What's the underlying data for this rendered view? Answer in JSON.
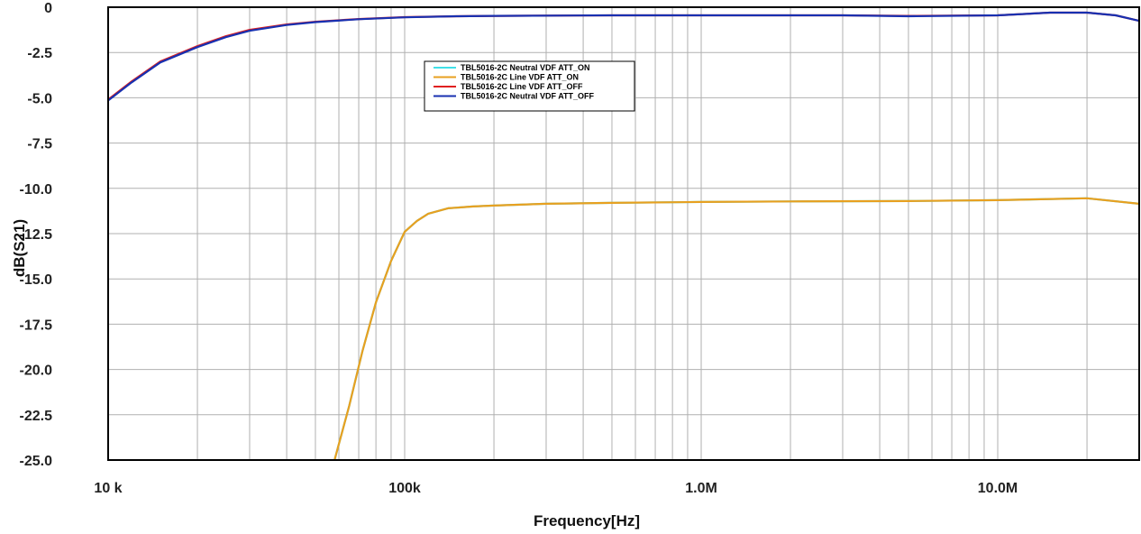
{
  "chart_data": {
    "type": "line",
    "title": "",
    "xlabel": "Frequency[Hz]",
    "ylabel": "dB(S21)",
    "xscale": "log",
    "xlim": [
      10000,
      30000000
    ],
    "ylim": [
      -25.0,
      0
    ],
    "grid": true,
    "legend_position": "top-left",
    "x_ticks": [
      {
        "value": 10000,
        "label": "10 k"
      },
      {
        "value": 100000,
        "label": "100k"
      },
      {
        "value": 1000000,
        "label": "1.0M"
      },
      {
        "value": 10000000,
        "label": "10.0M"
      }
    ],
    "y_ticks": [
      {
        "value": 0,
        "label": "0"
      },
      {
        "value": -2.5,
        "label": "-2.5"
      },
      {
        "value": -5.0,
        "label": "-5.0"
      },
      {
        "value": -7.5,
        "label": "-7.5"
      },
      {
        "value": -10.0,
        "label": "-10.0"
      },
      {
        "value": -12.5,
        "label": "-12.5"
      },
      {
        "value": -15.0,
        "label": "-15.0"
      },
      {
        "value": -17.5,
        "label": "-17.5"
      },
      {
        "value": -20.0,
        "label": "-20.0"
      },
      {
        "value": -22.5,
        "label": "-22.5"
      },
      {
        "value": -25.0,
        "label": "-25.0"
      }
    ],
    "series": [
      {
        "name": "TBL5016-2C Neutral VDF ATT_ON",
        "color": "#40e0e8",
        "points": [
          [
            58000,
            -25.0
          ],
          [
            65000,
            -22.0
          ],
          [
            72000,
            -19.0
          ],
          [
            80000,
            -16.3
          ],
          [
            90000,
            -14.0
          ],
          [
            100000,
            -12.4
          ],
          [
            110000,
            -11.8
          ],
          [
            120000,
            -11.4
          ],
          [
            140000,
            -11.1
          ],
          [
            170000,
            -11.0
          ],
          [
            200000,
            -10.95
          ],
          [
            300000,
            -10.85
          ],
          [
            500000,
            -10.8
          ],
          [
            1000000,
            -10.75
          ],
          [
            2000000,
            -10.72
          ],
          [
            5000000,
            -10.7
          ],
          [
            10000000,
            -10.65
          ],
          [
            20000000,
            -10.55
          ],
          [
            30000000,
            -10.85
          ]
        ]
      },
      {
        "name": "TBL5016-2C Line VDF ATT_ON",
        "color": "#e8a020",
        "points": [
          [
            58000,
            -25.0
          ],
          [
            65000,
            -22.0
          ],
          [
            72000,
            -19.0
          ],
          [
            80000,
            -16.3
          ],
          [
            90000,
            -14.0
          ],
          [
            100000,
            -12.4
          ],
          [
            110000,
            -11.8
          ],
          [
            120000,
            -11.4
          ],
          [
            140000,
            -11.1
          ],
          [
            170000,
            -11.0
          ],
          [
            200000,
            -10.95
          ],
          [
            300000,
            -10.85
          ],
          [
            500000,
            -10.8
          ],
          [
            1000000,
            -10.75
          ],
          [
            2000000,
            -10.72
          ],
          [
            5000000,
            -10.7
          ],
          [
            10000000,
            -10.65
          ],
          [
            20000000,
            -10.55
          ],
          [
            30000000,
            -10.85
          ]
        ]
      },
      {
        "name": "TBL5016-2C Line VDF ATT_OFF",
        "color": "#e02020",
        "points": [
          [
            10000,
            -5.1
          ],
          [
            12000,
            -4.1
          ],
          [
            15000,
            -3.0
          ],
          [
            20000,
            -2.15
          ],
          [
            25000,
            -1.6
          ],
          [
            30000,
            -1.25
          ],
          [
            40000,
            -0.95
          ],
          [
            50000,
            -0.8
          ],
          [
            70000,
            -0.65
          ],
          [
            100000,
            -0.55
          ],
          [
            150000,
            -0.5
          ],
          [
            200000,
            -0.48
          ],
          [
            500000,
            -0.45
          ],
          [
            1000000,
            -0.45
          ],
          [
            3000000,
            -0.45
          ],
          [
            5000000,
            -0.48
          ],
          [
            10000000,
            -0.45
          ],
          [
            15000000,
            -0.3
          ],
          [
            20000000,
            -0.3
          ],
          [
            25000000,
            -0.45
          ],
          [
            30000000,
            -0.75
          ]
        ]
      },
      {
        "name": "TBL5016-2C Neutral VDF ATT_OFF",
        "color": "#1830b0",
        "points": [
          [
            10000,
            -5.15
          ],
          [
            12000,
            -4.15
          ],
          [
            15000,
            -3.05
          ],
          [
            20000,
            -2.2
          ],
          [
            25000,
            -1.65
          ],
          [
            30000,
            -1.3
          ],
          [
            40000,
            -0.98
          ],
          [
            50000,
            -0.82
          ],
          [
            70000,
            -0.66
          ],
          [
            100000,
            -0.56
          ],
          [
            150000,
            -0.5
          ],
          [
            200000,
            -0.48
          ],
          [
            500000,
            -0.45
          ],
          [
            1000000,
            -0.45
          ],
          [
            3000000,
            -0.45
          ],
          [
            5000000,
            -0.5
          ],
          [
            10000000,
            -0.45
          ],
          [
            15000000,
            -0.3
          ],
          [
            20000000,
            -0.3
          ],
          [
            25000000,
            -0.45
          ],
          [
            30000000,
            -0.75
          ]
        ]
      }
    ]
  }
}
